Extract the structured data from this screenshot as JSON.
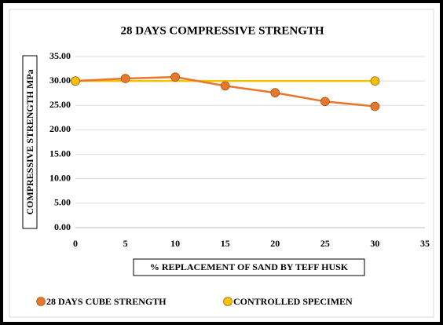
{
  "chart_data": {
    "type": "line",
    "title": "28 DAYS COMPRESSIVE STRENGTH",
    "x_label": "% REPLACEMENT OF SAND BY TEFF HUSK",
    "y_label": "COMPRESSIVE STRENGTH MPa",
    "series": [
      {
        "name": "28 DAYS CUBE STRENGTH",
        "color": "#e8762d",
        "x": [
          0,
          5,
          10,
          15,
          20,
          25,
          30
        ],
        "values": [
          30.0,
          30.5,
          30.8,
          29.0,
          27.6,
          25.8,
          24.8
        ]
      },
      {
        "name": "CONTROLLED SPECIMEN",
        "color": "#f2c200",
        "x": [
          0,
          30
        ],
        "values": [
          30.0,
          30.0
        ]
      }
    ],
    "xlim": [
      0,
      35
    ],
    "xticks": [
      0,
      5,
      10,
      15,
      20,
      25,
      30,
      35
    ],
    "ylim": [
      0,
      35
    ],
    "yticks": [
      {
        "value": 0,
        "label": "0.00"
      },
      {
        "value": 5,
        "label": "5.00"
      },
      {
        "value": 10,
        "label": "10.00"
      },
      {
        "value": 15,
        "label": "15.00"
      },
      {
        "value": 20,
        "label": "20.00"
      },
      {
        "value": 25,
        "label": "25.00"
      },
      {
        "value": 30,
        "label": "30.00"
      },
      {
        "value": 35,
        "label": "35.00"
      }
    ],
    "grid": true,
    "legend": "bottom"
  }
}
